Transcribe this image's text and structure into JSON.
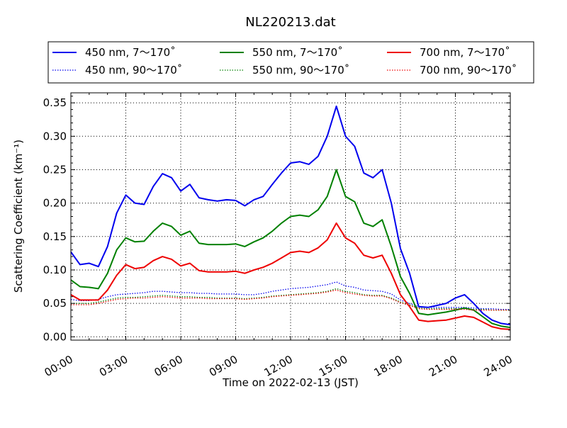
{
  "chart_data": {
    "type": "line",
    "title": "NL220213.dat",
    "xlabel": "Time on 2022-02-13 (JST)",
    "ylabel": "Scattering Coefficient (km⁻¹)",
    "x_unit": "hour",
    "xlim": [
      "00:00",
      "24:00"
    ],
    "ylim": [
      -0.005,
      0.365
    ],
    "x_ticks": [
      "00:00",
      "03:00",
      "06:00",
      "09:00",
      "12:00",
      "15:00",
      "18:00",
      "21:00",
      "24:00"
    ],
    "y_ticks": [
      "0.00",
      "0.05",
      "0.10",
      "0.15",
      "0.20",
      "0.25",
      "0.30",
      "0.35"
    ],
    "grid": true,
    "legend_position": "top-center",
    "x": [
      "00:00",
      "00:30",
      "01:00",
      "01:30",
      "02:00",
      "02:30",
      "03:00",
      "03:30",
      "04:00",
      "04:30",
      "05:00",
      "05:30",
      "06:00",
      "06:30",
      "07:00",
      "07:30",
      "08:00",
      "08:30",
      "09:00",
      "09:30",
      "10:00",
      "10:30",
      "11:00",
      "11:30",
      "12:00",
      "12:30",
      "13:00",
      "13:30",
      "14:00",
      "14:30",
      "15:00",
      "15:30",
      "16:00",
      "16:30",
      "17:00",
      "17:30",
      "18:00",
      "18:30",
      "19:00",
      "19:30",
      "20:00",
      "20:30",
      "21:00",
      "21:30",
      "22:00",
      "22:30",
      "23:00",
      "23:30",
      "24:00"
    ],
    "series": [
      {
        "name": "450 nm, 7～170˚",
        "color": "#0000ee",
        "style": "solid",
        "values": [
          0.127,
          0.108,
          0.11,
          0.105,
          0.135,
          0.185,
          0.212,
          0.2,
          0.198,
          0.225,
          0.244,
          0.238,
          0.218,
          0.228,
          0.208,
          0.205,
          0.203,
          0.205,
          0.204,
          0.196,
          0.205,
          0.21,
          0.228,
          0.245,
          0.26,
          0.262,
          0.258,
          0.27,
          0.3,
          0.345,
          0.3,
          0.285,
          0.245,
          0.238,
          0.25,
          0.2,
          0.132,
          0.095,
          0.045,
          0.044,
          0.047,
          0.05,
          0.058,
          0.063,
          0.05,
          0.035,
          0.025,
          0.02,
          0.018
        ]
      },
      {
        "name": "450 nm, 90～170˚",
        "color": "#0000ee",
        "style": "dotted",
        "values": [
          0.056,
          0.054,
          0.054,
          0.056,
          0.06,
          0.063,
          0.064,
          0.065,
          0.066,
          0.068,
          0.068,
          0.067,
          0.066,
          0.066,
          0.065,
          0.065,
          0.064,
          0.064,
          0.064,
          0.063,
          0.063,
          0.065,
          0.068,
          0.07,
          0.072,
          0.073,
          0.074,
          0.076,
          0.078,
          0.082,
          0.076,
          0.074,
          0.07,
          0.069,
          0.068,
          0.064,
          0.055,
          0.05,
          0.045,
          0.044,
          0.044,
          0.044,
          0.044,
          0.044,
          0.043,
          0.042,
          0.042,
          0.041,
          0.041
        ]
      },
      {
        "name": "550 nm, 7～170˚",
        "color": "#008000",
        "style": "solid",
        "values": [
          0.085,
          0.075,
          0.074,
          0.072,
          0.095,
          0.13,
          0.148,
          0.142,
          0.143,
          0.158,
          0.17,
          0.165,
          0.152,
          0.158,
          0.14,
          0.138,
          0.138,
          0.138,
          0.139,
          0.135,
          0.142,
          0.148,
          0.158,
          0.17,
          0.18,
          0.182,
          0.18,
          0.19,
          0.21,
          0.25,
          0.21,
          0.202,
          0.17,
          0.165,
          0.175,
          0.135,
          0.09,
          0.065,
          0.035,
          0.033,
          0.035,
          0.037,
          0.04,
          0.043,
          0.04,
          0.03,
          0.02,
          0.016,
          0.014
        ]
      },
      {
        "name": "550 nm, 90～170˚",
        "color": "#008000",
        "style": "dotted",
        "values": [
          0.05,
          0.05,
          0.05,
          0.052,
          0.055,
          0.058,
          0.059,
          0.059,
          0.06,
          0.061,
          0.062,
          0.061,
          0.06,
          0.06,
          0.059,
          0.059,
          0.058,
          0.058,
          0.058,
          0.057,
          0.058,
          0.059,
          0.061,
          0.062,
          0.063,
          0.064,
          0.065,
          0.066,
          0.068,
          0.072,
          0.068,
          0.066,
          0.063,
          0.062,
          0.062,
          0.058,
          0.052,
          0.048,
          0.043,
          0.042,
          0.042,
          0.042,
          0.042,
          0.042,
          0.041,
          0.041,
          0.04,
          0.04,
          0.04
        ]
      },
      {
        "name": "700 nm, 7～170˚",
        "color": "#ee0000",
        "style": "solid",
        "values": [
          0.063,
          0.055,
          0.055,
          0.055,
          0.07,
          0.092,
          0.108,
          0.102,
          0.104,
          0.114,
          0.12,
          0.116,
          0.106,
          0.11,
          0.099,
          0.097,
          0.097,
          0.097,
          0.098,
          0.095,
          0.1,
          0.104,
          0.11,
          0.118,
          0.126,
          0.128,
          0.126,
          0.133,
          0.145,
          0.17,
          0.148,
          0.14,
          0.122,
          0.118,
          0.122,
          0.095,
          0.063,
          0.045,
          0.025,
          0.023,
          0.024,
          0.025,
          0.028,
          0.031,
          0.029,
          0.022,
          0.015,
          0.012,
          0.011
        ]
      },
      {
        "name": "700 nm, 90～170˚",
        "color": "#ee0000",
        "style": "dotted",
        "values": [
          0.048,
          0.048,
          0.048,
          0.05,
          0.053,
          0.056,
          0.057,
          0.058,
          0.058,
          0.059,
          0.06,
          0.059,
          0.058,
          0.058,
          0.058,
          0.057,
          0.057,
          0.057,
          0.057,
          0.056,
          0.057,
          0.058,
          0.06,
          0.061,
          0.062,
          0.063,
          0.064,
          0.065,
          0.067,
          0.07,
          0.066,
          0.064,
          0.062,
          0.061,
          0.061,
          0.057,
          0.051,
          0.047,
          0.042,
          0.041,
          0.041,
          0.041,
          0.041,
          0.041,
          0.04,
          0.04,
          0.04,
          0.04,
          0.04
        ]
      }
    ]
  }
}
